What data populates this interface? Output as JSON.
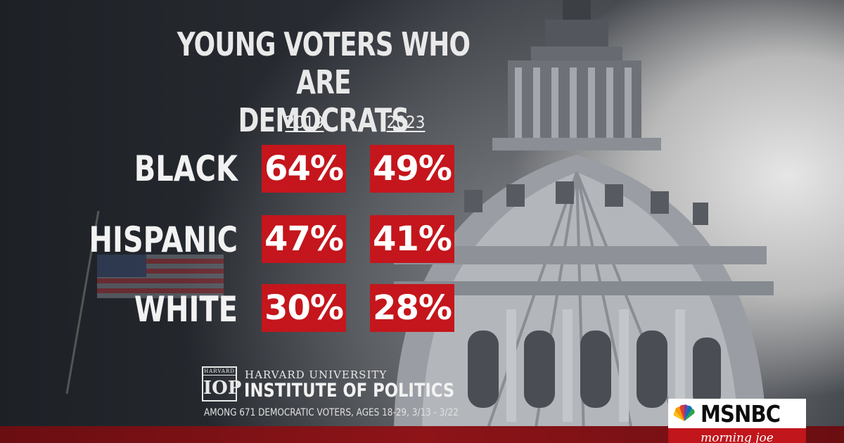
{
  "headline": {
    "line1": "YOUNG VOTERS WHO ARE",
    "line2": "DEMOCRATS"
  },
  "chart_data": {
    "type": "table",
    "title": "YOUNG VOTERS WHO ARE DEMOCRATS",
    "columns": [
      "2019",
      "2023"
    ],
    "rows": [
      {
        "label": "BLACK",
        "values": [
          "64%",
          "49%"
        ]
      },
      {
        "label": "HISPANIC",
        "values": [
          "47%",
          "41%"
        ]
      },
      {
        "label": "WHITE",
        "values": [
          "30%",
          "28%"
        ]
      }
    ],
    "cell_color": "#c4161c"
  },
  "source": {
    "logo_top": "HARVARD",
    "logo_main": "IOP",
    "university": "HARVARD UNIVERSITY",
    "institute": "INSTITUTE OF POLITICS",
    "note": "AMONG 671 DEMOCRATIC VOTERS, AGES 18-29,  3/13 - 3/22"
  },
  "branding": {
    "network": "MSNBC",
    "show": "morning joe",
    "peacock_icon": "peacock-logo-icon"
  }
}
